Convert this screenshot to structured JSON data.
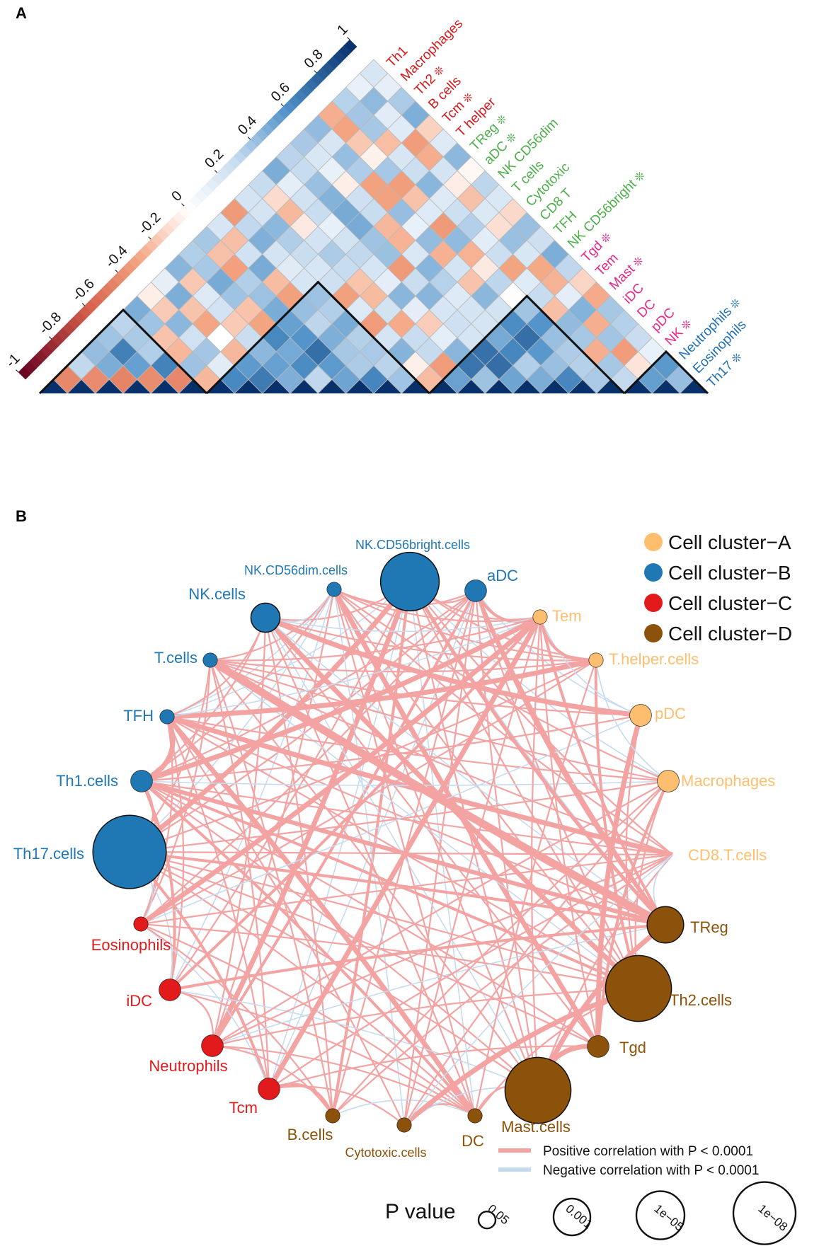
{
  "panels": {
    "a": "A",
    "b": "B"
  },
  "colorbar": {
    "ticks": [
      "-1",
      "-0.8",
      "-0.6",
      "-0.4",
      "-0.2",
      "0",
      "0.2",
      "0.4",
      "0.6",
      "0.8",
      "1"
    ],
    "range": [
      -1,
      1
    ]
  },
  "matrix": {
    "labels": [
      {
        "name": "Th1",
        "star": false,
        "group": "A"
      },
      {
        "name": "Macrophages",
        "star": false,
        "group": "A"
      },
      {
        "name": "Th2",
        "star": true,
        "group": "A"
      },
      {
        "name": "B cells",
        "star": false,
        "group": "A"
      },
      {
        "name": "Tcm",
        "star": true,
        "group": "A"
      },
      {
        "name": "T helper",
        "star": false,
        "group": "A"
      },
      {
        "name": "TReg",
        "star": true,
        "group": "B"
      },
      {
        "name": "aDC",
        "star": true,
        "group": "B"
      },
      {
        "name": "NK CD56dim",
        "star": false,
        "group": "B"
      },
      {
        "name": "T cells",
        "star": false,
        "group": "B"
      },
      {
        "name": "Cytotoxic",
        "star": false,
        "group": "B"
      },
      {
        "name": "CD8 T",
        "star": false,
        "group": "B"
      },
      {
        "name": "TFH",
        "star": false,
        "group": "B"
      },
      {
        "name": "NK CD56bright",
        "star": true,
        "group": "B"
      },
      {
        "name": "Tgd",
        "star": true,
        "group": "C"
      },
      {
        "name": "Tem",
        "star": false,
        "group": "C"
      },
      {
        "name": "Mast",
        "star": true,
        "group": "C"
      },
      {
        "name": "iDC",
        "star": false,
        "group": "C"
      },
      {
        "name": "DC",
        "star": false,
        "group": "C"
      },
      {
        "name": "pDC",
        "star": false,
        "group": "C"
      },
      {
        "name": "NK",
        "star": true,
        "group": "C"
      },
      {
        "name": "Neutrophils",
        "star": true,
        "group": "D"
      },
      {
        "name": "Eosinophils",
        "star": false,
        "group": "D"
      },
      {
        "name": "Th17",
        "star": true,
        "group": "D"
      }
    ],
    "star_symbol": "❊",
    "group_colors": {
      "A": "#d7191c",
      "B": "#4daf4a",
      "C": "#e7298a",
      "D": "#2171b5"
    },
    "cluster_blocks": [
      [
        0,
        5
      ],
      [
        6,
        13
      ],
      [
        14,
        20
      ],
      [
        21,
        23
      ]
    ]
  },
  "network": {
    "nodes": [
      {
        "id": "NK.CD56bright.cells",
        "cluster": "B",
        "p_size": 7
      },
      {
        "id": "aDC",
        "cluster": "B",
        "p_size": 2
      },
      {
        "id": "NK.CD56dim.cells",
        "cluster": "B",
        "p_size": 1
      },
      {
        "id": "NK.cells",
        "cluster": "B",
        "p_size": 3
      },
      {
        "id": "T.cells",
        "cluster": "B",
        "p_size": 1
      },
      {
        "id": "TFH",
        "cluster": "B",
        "p_size": 1
      },
      {
        "id": "Th1.cells",
        "cluster": "B",
        "p_size": 2
      },
      {
        "id": "Th17.cells",
        "cluster": "B",
        "p_size": 9
      },
      {
        "id": "Eosinophils",
        "cluster": "C",
        "p_size": 1
      },
      {
        "id": "iDC",
        "cluster": "C",
        "p_size": 2
      },
      {
        "id": "Neutrophils",
        "cluster": "C",
        "p_size": 2
      },
      {
        "id": "Tcm",
        "cluster": "C",
        "p_size": 2
      },
      {
        "id": "B.cells",
        "cluster": "D",
        "p_size": 1
      },
      {
        "id": "Cytotoxic.cells",
        "cluster": "D",
        "p_size": 1
      },
      {
        "id": "DC",
        "cluster": "D",
        "p_size": 1
      },
      {
        "id": "Mast.cells",
        "cluster": "D",
        "p_size": 8
      },
      {
        "id": "Tgd",
        "cluster": "D",
        "p_size": 2
      },
      {
        "id": "Th2.cells",
        "cluster": "D",
        "p_size": 8
      },
      {
        "id": "TReg",
        "cluster": "D",
        "p_size": 4
      },
      {
        "id": "CD8.T.cells",
        "cluster": "A",
        "p_size": 0
      },
      {
        "id": "Macrophages",
        "cluster": "A",
        "p_size": 2
      },
      {
        "id": "pDC",
        "cluster": "A",
        "p_size": 2
      },
      {
        "id": "T.helper.cells",
        "cluster": "A",
        "p_size": 1
      },
      {
        "id": "Tem",
        "cluster": "A",
        "p_size": 1
      }
    ],
    "legend": [
      {
        "label": "Cell cluster−A",
        "color": "#fdbf6f"
      },
      {
        "label": "Cell cluster−B",
        "color": "#1f78b4"
      },
      {
        "label": "Cell cluster−C",
        "color": "#e31a1c"
      },
      {
        "label": "Cell cluster−D",
        "color": "#8c510a"
      }
    ],
    "edge_legend": {
      "positive": "Positive correlation with P < 0.0001",
      "negative": "Negative correlation with P < 0.0001",
      "positive_color": "#f4a3a3",
      "negative_color": "#c6dbef"
    },
    "pvalue": {
      "title": "P value",
      "values": [
        "0.05",
        "0.001",
        "1e−05",
        "1e−08"
      ]
    }
  }
}
